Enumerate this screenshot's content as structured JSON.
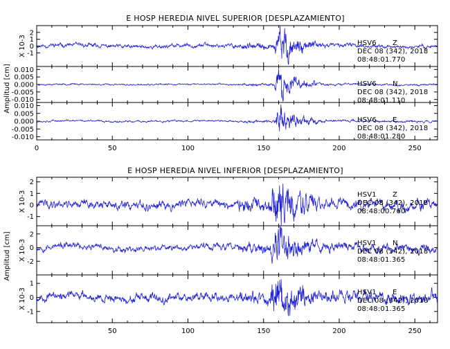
{
  "chart_data": [
    {
      "type": "line",
      "title": "E HOSP HEREDIA NIVEL SUPERIOR [DESPLAZAMIENTO]",
      "ylabel": "Amplitud [cm]",
      "xlim": [
        0,
        265
      ],
      "xticks": [
        "0",
        "50",
        "100",
        "150",
        "200",
        "250"
      ],
      "line_color": "#1f1fd6",
      "panels": [
        {
          "station": "HSV6",
          "component": "Z",
          "date": "DEC 08 (342), 2018",
          "time": "08:48:01.770",
          "scale_label": "X 10-3",
          "ylim": [
            -3,
            3
          ],
          "yticks": [
            "2",
            "1",
            "0",
            "-1"
          ],
          "series": {
            "pre_amp": 0.35,
            "peak": 2.6,
            "peak_time": 161,
            "post_amp": 0.3,
            "seed": 11
          }
        },
        {
          "station": "HSV6",
          "component": "N",
          "date": "DEC 08 (342), 2018",
          "time": "08:48:01.110",
          "ylim": [
            -0.012,
            0.012
          ],
          "yticks": [
            "0.010",
            "0.005",
            "0.000",
            "-0.005",
            "-0.010"
          ],
          "series": {
            "pre_amp": 0.0006,
            "peak": 0.009,
            "peak_time": 161,
            "post_amp": 0.0008,
            "seed": 23
          }
        },
        {
          "station": "HSV6",
          "component": "E",
          "date": "DEC 08 (342), 2018",
          "time": "08:48:01.280",
          "ylim": [
            -0.012,
            0.012
          ],
          "yticks": [
            "0.010",
            "0.005",
            "0.000",
            "-0.005",
            "-0.010"
          ],
          "series": {
            "pre_amp": 0.0007,
            "peak": 0.009,
            "peak_time": 161,
            "post_amp": 0.0009,
            "seed": 37
          }
        }
      ]
    },
    {
      "type": "line",
      "title": "E HOSP HEREDIA NIVEL INFERIOR [DESPLAZAMIENTO]",
      "ylabel": "Amplitud [cm]",
      "xlim": [
        0,
        265
      ],
      "xticks": [
        "50",
        "100",
        "150",
        "200",
        "250"
      ],
      "line_color": "#1f1fd6",
      "panels": [
        {
          "station": "HSV1",
          "component": "Z",
          "date": "DEC 08 (342), 2018",
          "time": "08:48:00.760",
          "scale_label": "X 10-3",
          "ylim": [
            -1.8,
            2.4
          ],
          "yticks": [
            "2",
            "1",
            "0",
            "-1"
          ],
          "series": {
            "pre_amp": 0.45,
            "peak": 2.2,
            "peak_time": 158,
            "post_amp": 0.55,
            "seed": 41
          }
        },
        {
          "station": "HSV1",
          "component": "N",
          "date": "DEC 08 (342), 2018",
          "time": "08:48:01.365",
          "scale_label": "X 10-3",
          "ylim": [
            -4,
            3.2
          ],
          "yticks": [
            "2",
            "0",
            "-2"
          ],
          "series": {
            "pre_amp": 0.55,
            "peak": 3.2,
            "peak_time": 158,
            "post_amp": 0.8,
            "seed": 53
          }
        },
        {
          "station": "HSV1",
          "component": "E",
          "date": "DEC 08 (342), 2018",
          "time": "08:48:01.365",
          "scale_label": "X 10-3",
          "ylim": [
            -1.8,
            1.6
          ],
          "yticks": [
            "1",
            "0",
            "-1"
          ],
          "series": {
            "pre_amp": 0.35,
            "peak": 1.6,
            "peak_time": 158,
            "post_amp": 0.5,
            "seed": 67
          }
        }
      ]
    }
  ]
}
